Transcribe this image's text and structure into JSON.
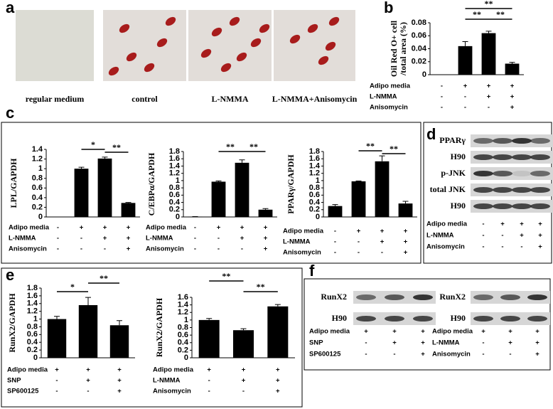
{
  "panel_labels": [
    "a",
    "b",
    "c",
    "d",
    "e",
    "f"
  ],
  "images": {
    "captions": [
      "regular medium",
      "control",
      "L-NMMA",
      "L-NMMA+Anisomycin"
    ]
  },
  "chart_data": [
    {
      "type": "bar",
      "ylabel": [
        "Oil Red O+ cell",
        "/total area (%)"
      ],
      "categories": [
        null,
        null,
        null,
        null
      ],
      "values": [
        0,
        0.044,
        0.064,
        0.017
      ],
      "errors": [
        0,
        0.007,
        0.003,
        0.002
      ],
      "ylim": [
        0,
        0.08
      ],
      "yticks": [
        0,
        0.02,
        0.04,
        0.06,
        0.08
      ],
      "color": "#000000",
      "annotations": [
        "**",
        "**",
        "**"
      ],
      "conditions": [
        {
          "name": "Adipo media",
          "signs": [
            "-",
            "+",
            "+",
            "+"
          ]
        },
        {
          "name": "L-NMMA",
          "signs": [
            "-",
            "-",
            "+",
            "+"
          ]
        },
        {
          "name": "Anisomycin",
          "signs": [
            "-",
            "-",
            "-",
            "+"
          ]
        }
      ]
    },
    {
      "type": "bar",
      "ylabel": "LPL/GAPDH",
      "categories": [
        null,
        null,
        null,
        null
      ],
      "values": [
        0,
        1.0,
        1.21,
        0.29
      ],
      "errors": [
        0,
        0.03,
        0.03,
        0.01
      ],
      "ylim": [
        0,
        1.4
      ],
      "yticks": [
        0,
        0.2,
        0.4,
        0.6,
        0.8,
        1,
        1.2,
        1.4
      ],
      "color": "#000000",
      "annotations": [
        "*",
        "**"
      ],
      "conditions": [
        {
          "name": "Adipo media",
          "signs": [
            "-",
            "+",
            "+",
            "+"
          ]
        },
        {
          "name": "L-NMMA",
          "signs": [
            "-",
            "-",
            "+",
            "+"
          ]
        },
        {
          "name": "Anisomycin",
          "signs": [
            "-",
            "-",
            "-",
            "+"
          ]
        }
      ]
    },
    {
      "type": "bar",
      "ylabel": "C/EBPα/GAPDH",
      "categories": [
        null,
        null,
        null,
        null
      ],
      "values": [
        0.01,
        0.97,
        1.49,
        0.2
      ],
      "errors": [
        0,
        0.02,
        0.08,
        0.03
      ],
      "ylim": [
        0,
        1.8
      ],
      "yticks": [
        0,
        0.2,
        0.4,
        0.6,
        0.8,
        1,
        1.2,
        1.4,
        1.6,
        1.8
      ],
      "color": "#000000",
      "annotations": [
        "**",
        "**"
      ],
      "conditions": [
        {
          "name": "Adipo media",
          "signs": [
            "-",
            "+",
            "+",
            "+"
          ]
        },
        {
          "name": "L-NMMA",
          "signs": [
            "-",
            "-",
            "+",
            "+"
          ]
        },
        {
          "name": "Anisomycin",
          "signs": [
            "-",
            "-",
            "-",
            "+"
          ]
        }
      ]
    },
    {
      "type": "bar",
      "ylabel": "PPARγ/GAPDH",
      "categories": [
        null,
        null,
        null,
        null
      ],
      "values": [
        0.3,
        0.98,
        1.53,
        0.37
      ],
      "errors": [
        0.04,
        0.01,
        0.15,
        0.06
      ],
      "ylim": [
        0,
        1.8
      ],
      "yticks": [
        0,
        0.2,
        0.4,
        0.6,
        0.8,
        1,
        1.2,
        1.4,
        1.6,
        1.8
      ],
      "color": "#000000",
      "annotations": [
        "**",
        "**"
      ],
      "conditions": [
        {
          "name": "Adipo media",
          "signs": [
            "-",
            "+",
            "+",
            "+"
          ]
        },
        {
          "name": "L-NMMA",
          "signs": [
            "-",
            "-",
            "+",
            "+"
          ]
        },
        {
          "name": "Anisomycin",
          "signs": [
            "-",
            "-",
            "-",
            "+"
          ]
        }
      ]
    },
    {
      "type": "bar",
      "ylabel": "RunX2/GAPDH",
      "categories": [
        null,
        null,
        null
      ],
      "values": [
        1.0,
        1.36,
        0.84
      ],
      "errors": [
        0.07,
        0.2,
        0.12
      ],
      "ylim": [
        0,
        1.8
      ],
      "yticks": [
        0,
        0.2,
        0.4,
        0.6,
        0.8,
        1,
        1.2,
        1.4,
        1.6,
        1.8
      ],
      "color": "#000000",
      "annotations": [
        "*",
        "**"
      ],
      "conditions": [
        {
          "name": "Adipo media",
          "signs": [
            "+",
            "+",
            "+"
          ]
        },
        {
          "name": "SNP",
          "signs": [
            "-",
            "+",
            "+"
          ]
        },
        {
          "name": "SP600125",
          "signs": [
            "-",
            "-",
            "+"
          ]
        }
      ]
    },
    {
      "type": "bar",
      "ylabel": "RunX2/GAPDH",
      "categories": [
        null,
        null,
        null
      ],
      "values": [
        1.0,
        0.73,
        1.36
      ],
      "errors": [
        0.04,
        0.04,
        0.05
      ],
      "ylim": [
        0,
        1.6
      ],
      "yticks": [
        0,
        0.2,
        0.4,
        0.6,
        0.8,
        1,
        1.2,
        1.4,
        1.6
      ],
      "color": "#000000",
      "annotations": [
        "**",
        "**"
      ],
      "conditions": [
        {
          "name": "Adipo media",
          "signs": [
            "+",
            "+",
            "+"
          ]
        },
        {
          "name": "L-NMMA",
          "signs": [
            "-",
            "+",
            "+"
          ]
        },
        {
          "name": "Anisomycin",
          "signs": [
            "-",
            "-",
            "+"
          ]
        }
      ]
    }
  ],
  "blots": [
    {
      "bands": [
        "PPARγ",
        "H90",
        "p-JNK",
        "total JNK",
        "H90"
      ],
      "conditions": [
        {
          "name": "Adipo media",
          "signs": [
            "-",
            "+",
            "+",
            "+"
          ]
        },
        {
          "name": "L-NMMA",
          "signs": [
            "-",
            "-",
            "+",
            "+"
          ]
        },
        {
          "name": "Anisomycin",
          "signs": [
            "-",
            "-",
            "-",
            "+"
          ]
        }
      ]
    },
    {
      "bands": [
        "RunX2",
        "H90"
      ],
      "conditions": [
        {
          "name": "Adipo media",
          "signs": [
            "+",
            "+",
            "+"
          ]
        },
        {
          "name": "SNP",
          "signs": [
            "-",
            "+",
            "+"
          ]
        },
        {
          "name": "SP600125",
          "signs": [
            "-",
            "-",
            "+"
          ]
        }
      ]
    },
    {
      "bands": [
        "RunX2",
        "H90"
      ],
      "conditions": [
        {
          "name": "Adipo media",
          "signs": [
            "+",
            "+",
            "+"
          ]
        },
        {
          "name": "L-NMMA",
          "signs": [
            "-",
            "+",
            "+"
          ]
        },
        {
          "name": "Anisomycin",
          "signs": [
            "-",
            "-",
            "+"
          ]
        }
      ]
    }
  ]
}
